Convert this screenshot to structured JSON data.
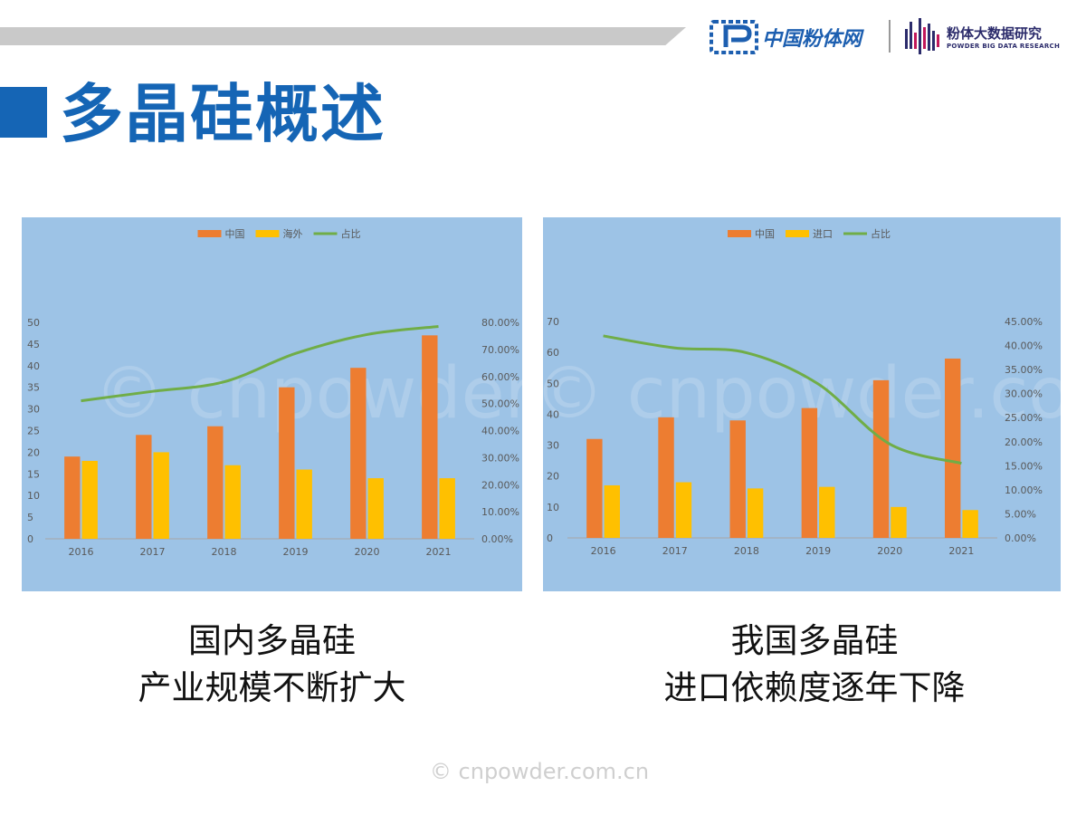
{
  "header": {
    "logo1_text": "中国粉体网",
    "logo2_cn": "粉体大数据研究",
    "logo2_en": "POWDER BIG DATA RESEARCH"
  },
  "page_title": "多晶硅概述",
  "captions": [
    {
      "line1": "国内多晶硅",
      "line2": "产业规模不断扩大"
    },
    {
      "line1": "我国多晶硅",
      "line2": "进口依赖度逐年下降"
    }
  ],
  "footer": "© cnpowder.com.cn",
  "watermark": "© cnpowder.com.cn",
  "colors": {
    "china": "#ed7d31",
    "other": "#ffc000",
    "share": "#70ad47",
    "panel": "#9dc3e6",
    "title": "#1565b5"
  },
  "chart_data": [
    {
      "type": "bar",
      "categories": [
        "2016",
        "2017",
        "2018",
        "2019",
        "2020",
        "2021"
      ],
      "series": [
        {
          "name": "中国",
          "kind": "bar",
          "axis": "left",
          "values": [
            19,
            24,
            26,
            35,
            39.5,
            47
          ]
        },
        {
          "name": "海外",
          "kind": "bar",
          "axis": "left",
          "values": [
            18,
            20,
            17,
            16,
            14,
            14
          ]
        },
        {
          "name": "占比",
          "kind": "line",
          "axis": "right",
          "values": [
            0.51,
            0.545,
            0.58,
            0.685,
            0.755,
            0.785
          ]
        }
      ],
      "ylim": [
        0,
        50
      ],
      "yticks": [
        "0",
        "5",
        "10",
        "15",
        "20",
        "25",
        "30",
        "35",
        "40",
        "45",
        "50"
      ],
      "y2lim": [
        0,
        0.8
      ],
      "y2ticks": [
        "0.00%",
        "10.00%",
        "20.00%",
        "30.00%",
        "40.00%",
        "50.00%",
        "60.00%",
        "70.00%",
        "80.00%"
      ],
      "legend": "top-center",
      "grid": false
    },
    {
      "type": "bar",
      "categories": [
        "2016",
        "2017",
        "2018",
        "2019",
        "2020",
        "2021"
      ],
      "series": [
        {
          "name": "中国",
          "kind": "bar",
          "axis": "left",
          "values": [
            32,
            39,
            38,
            42,
            51,
            58
          ]
        },
        {
          "name": "进口",
          "kind": "bar",
          "axis": "left",
          "values": [
            17,
            18,
            16,
            16.5,
            10,
            9
          ]
        },
        {
          "name": "占比",
          "kind": "line",
          "axis": "right",
          "values": [
            0.42,
            0.395,
            0.385,
            0.32,
            0.195,
            0.155
          ]
        }
      ],
      "ylim": [
        0,
        70
      ],
      "yticks": [
        "0",
        "10",
        "20",
        "30",
        "40",
        "50",
        "60",
        "70"
      ],
      "y2lim": [
        0,
        0.45
      ],
      "y2ticks": [
        "0.00%",
        "5.00%",
        "10.00%",
        "15.00%",
        "20.00%",
        "25.00%",
        "30.00%",
        "35.00%",
        "40.00%",
        "45.00%"
      ],
      "legend": "top-center",
      "grid": false
    }
  ]
}
